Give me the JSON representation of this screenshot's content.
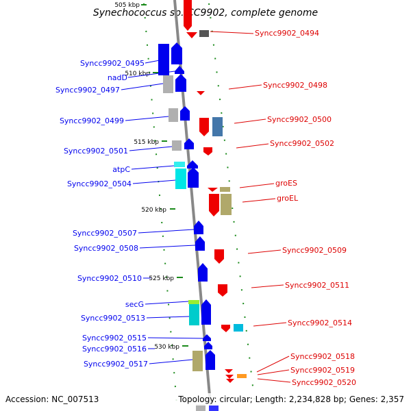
{
  "title": "Synechococcus sp. CC9902, complete genome",
  "footer": {
    "accession": "Accession: NC_007513",
    "topology": "Topology: circular; Length: 2,234,828 bp; Genes: 2,357"
  },
  "colors": {
    "forward": "#0000ee",
    "reverse": "#ee0000",
    "backbone": "#888888",
    "tick": "#1a8a1a"
  },
  "kbp_labels": [
    "505 kbp",
    "510 kbp",
    "515 kbp",
    "520 kbp",
    "525 kbp",
    "530 kbp"
  ],
  "left_labels": [
    "Syncc9902_0495",
    "nadD",
    "Syncc9902_0497",
    "Syncc9902_0499",
    "Syncc9902_0501",
    "atpC",
    "Syncc9902_0504",
    "Syncc9902_0507",
    "Syncc9902_0508",
    "Syncc9902_0510",
    "secG",
    "Syncc9902_0513",
    "Syncc9902_0515",
    "Syncc9902_0516",
    "Syncc9902_0517"
  ],
  "right_labels": [
    "Syncc9902_0494",
    "Syncc9902_0498",
    "Syncc9902_0500",
    "Syncc9902_0502",
    "groES",
    "groEL",
    "Syncc9902_0509",
    "Syncc9902_0511",
    "Syncc9902_0514",
    "Syncc9902_0518",
    "Syncc9902_0519",
    "Syncc9902_0520"
  ]
}
